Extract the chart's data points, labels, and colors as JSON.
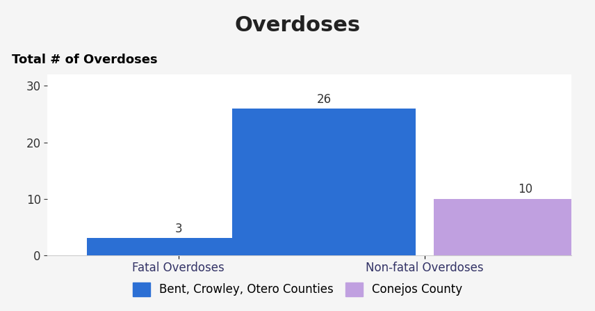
{
  "title": "Overdoses",
  "subtitle": "Total # of Overdoses",
  "subtitle_bg_color": "#40E0C0",
  "subtitle_text_color": "#000000",
  "categories": [
    "Fatal Overdoses",
    "Non-fatal Overdoses"
  ],
  "series": [
    {
      "name": "Bent, Crowley, Otero Counties",
      "color": "#2B6FD4",
      "values": [
        3,
        26
      ]
    },
    {
      "name": "Conejos County",
      "color": "#C0A0E0",
      "values": [
        null,
        10
      ]
    }
  ],
  "ylim": [
    0,
    32
  ],
  "yticks": [
    0,
    10,
    20,
    30
  ],
  "bar_width": 0.35,
  "background_color": "#F5F5F5",
  "plot_background_color": "#FFFFFF",
  "title_fontsize": 22,
  "subtitle_fontsize": 13,
  "label_fontsize": 12,
  "value_label_fontsize": 12,
  "legend_fontsize": 12
}
